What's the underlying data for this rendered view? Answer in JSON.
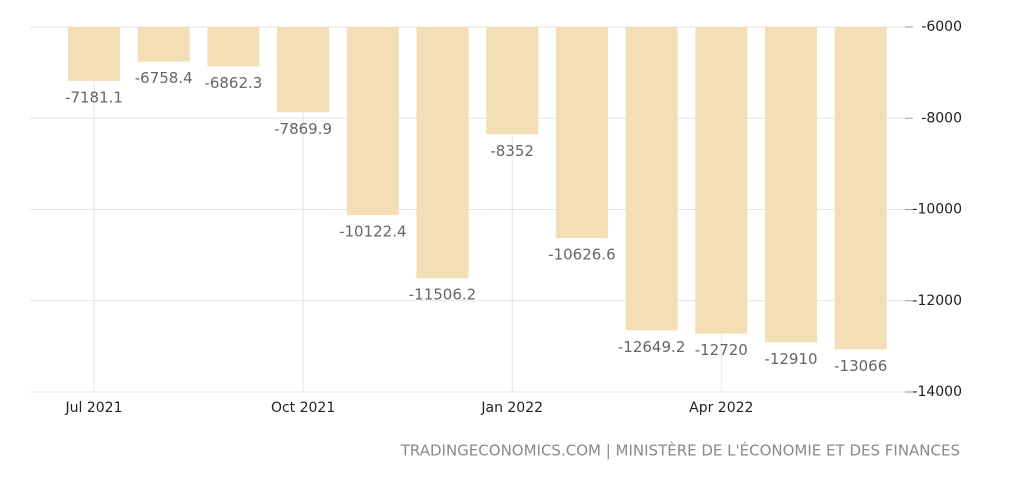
{
  "chart_data": {
    "type": "bar",
    "categories": [
      "Jul 2021",
      null,
      null,
      "Oct 2021",
      null,
      null,
      "Jan 2022",
      null,
      null,
      "Apr 2022",
      null,
      null
    ],
    "values": [
      -7181.1,
      -6758.4,
      -6862.3,
      -7869.9,
      -10122.4,
      -11506.2,
      -8352,
      -10626.6,
      -12649.2,
      -12720,
      -12910,
      -13066
    ],
    "color": "#f3deb5",
    "ylim": [
      -14000,
      -6000
    ],
    "yticks": [
      -14000,
      -12000,
      -10000,
      -8000,
      -6000
    ],
    "grid": true,
    "source": "TRADINGECONOMICS.COM | MINISTÈRE DE L'ÉCONOMIE ET DES FINANCES"
  }
}
